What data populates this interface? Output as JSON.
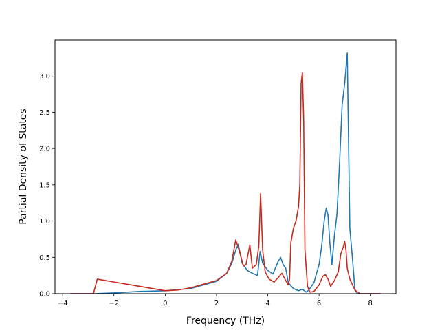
{
  "chart_data": {
    "type": "line",
    "title": "",
    "xlabel": "Frequency (THz)",
    "ylabel": "Partial Density of States",
    "xlim": [
      -4.3,
      9.0
    ],
    "ylim": [
      0.0,
      3.5
    ],
    "xticks": [
      -4,
      -2,
      0,
      2,
      4,
      6,
      8
    ],
    "xtick_labels": [
      "−4",
      "−2",
      "0",
      "2",
      "4",
      "6",
      "8"
    ],
    "yticks": [
      0.0,
      0.5,
      1.0,
      1.5,
      2.0,
      2.5,
      3.0
    ],
    "ytick_labels": [
      "0.0",
      "0.5",
      "1.0",
      "1.5",
      "2.0",
      "2.5",
      "3.0"
    ],
    "grid": false,
    "legend": "none",
    "series": [
      {
        "color": "#1f77b4",
        "x": [
          -3.7,
          -2.8,
          -2.0,
          -1.0,
          0.0,
          1.0,
          2.0,
          2.4,
          2.6,
          2.75,
          2.85,
          3.0,
          3.2,
          3.4,
          3.6,
          3.7,
          3.8,
          4.0,
          4.2,
          4.4,
          4.5,
          4.6,
          4.7,
          4.8,
          5.0,
          5.2,
          5.35,
          5.5,
          5.6,
          5.8,
          6.0,
          6.1,
          6.2,
          6.28,
          6.35,
          6.42,
          6.5,
          6.6,
          6.7,
          6.8,
          6.9,
          7.0,
          7.1,
          7.2,
          7.3,
          7.4,
          7.5,
          8.0,
          8.4
        ],
        "y": [
          0.0,
          0.0,
          0.01,
          0.03,
          0.04,
          0.07,
          0.17,
          0.28,
          0.42,
          0.6,
          0.68,
          0.42,
          0.32,
          0.28,
          0.25,
          0.58,
          0.42,
          0.32,
          0.27,
          0.44,
          0.5,
          0.4,
          0.35,
          0.15,
          0.07,
          0.04,
          0.06,
          0.02,
          0.05,
          0.15,
          0.4,
          0.65,
          1.0,
          1.18,
          1.08,
          0.7,
          0.4,
          0.8,
          1.1,
          1.8,
          2.6,
          2.9,
          3.32,
          0.9,
          0.5,
          0.05,
          0.0,
          0.0,
          0.0
        ]
      },
      {
        "color": "#c7291d",
        "x": [
          -3.7,
          -2.8,
          -2.65,
          -2.0,
          -1.0,
          0.0,
          0.5,
          1.0,
          2.0,
          2.4,
          2.6,
          2.75,
          2.9,
          3.05,
          3.15,
          3.3,
          3.4,
          3.55,
          3.65,
          3.72,
          3.8,
          3.9,
          4.05,
          4.25,
          4.4,
          4.55,
          4.7,
          4.8,
          4.85,
          4.9,
          5.0,
          5.1,
          5.2,
          5.25,
          5.3,
          5.35,
          5.4,
          5.45,
          5.55,
          5.65,
          5.8,
          6.0,
          6.15,
          6.25,
          6.35,
          6.45,
          6.6,
          6.75,
          6.85,
          6.95,
          7.0,
          7.05,
          7.1,
          7.2,
          7.4,
          7.6,
          8.0,
          8.4
        ],
        "y": [
          0.0,
          0.0,
          0.2,
          0.16,
          0.1,
          0.04,
          0.05,
          0.08,
          0.18,
          0.28,
          0.45,
          0.74,
          0.58,
          0.38,
          0.4,
          0.67,
          0.35,
          0.4,
          0.65,
          1.38,
          0.6,
          0.3,
          0.2,
          0.16,
          0.22,
          0.28,
          0.18,
          0.12,
          0.2,
          0.7,
          0.9,
          1.0,
          1.2,
          1.5,
          2.9,
          3.05,
          2.4,
          0.6,
          0.1,
          0.02,
          0.03,
          0.12,
          0.24,
          0.26,
          0.2,
          0.1,
          0.18,
          0.3,
          0.55,
          0.65,
          0.72,
          0.6,
          0.35,
          0.2,
          0.05,
          0.0,
          0.0,
          0.0
        ]
      }
    ]
  }
}
